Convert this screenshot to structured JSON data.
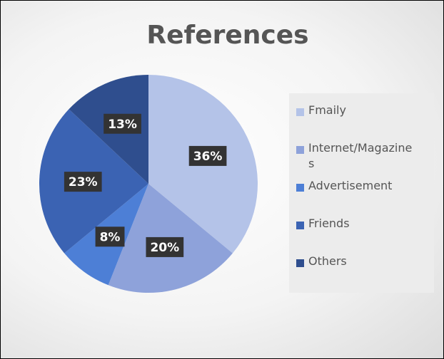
{
  "chart_data": {
    "type": "pie",
    "title": "References",
    "categories": [
      "Fmaily",
      "Internet/Magazines",
      "Advertisement",
      "Friends",
      "Others"
    ],
    "values": [
      36,
      20,
      8,
      23,
      13
    ],
    "value_labels": [
      "36%",
      "20%",
      "8%",
      "23%",
      "13%"
    ],
    "colors": [
      "#b4c3e8",
      "#8ea2da",
      "#4d7fd6",
      "#3b63b3",
      "#2f4e8e"
    ],
    "legend": "right"
  }
}
